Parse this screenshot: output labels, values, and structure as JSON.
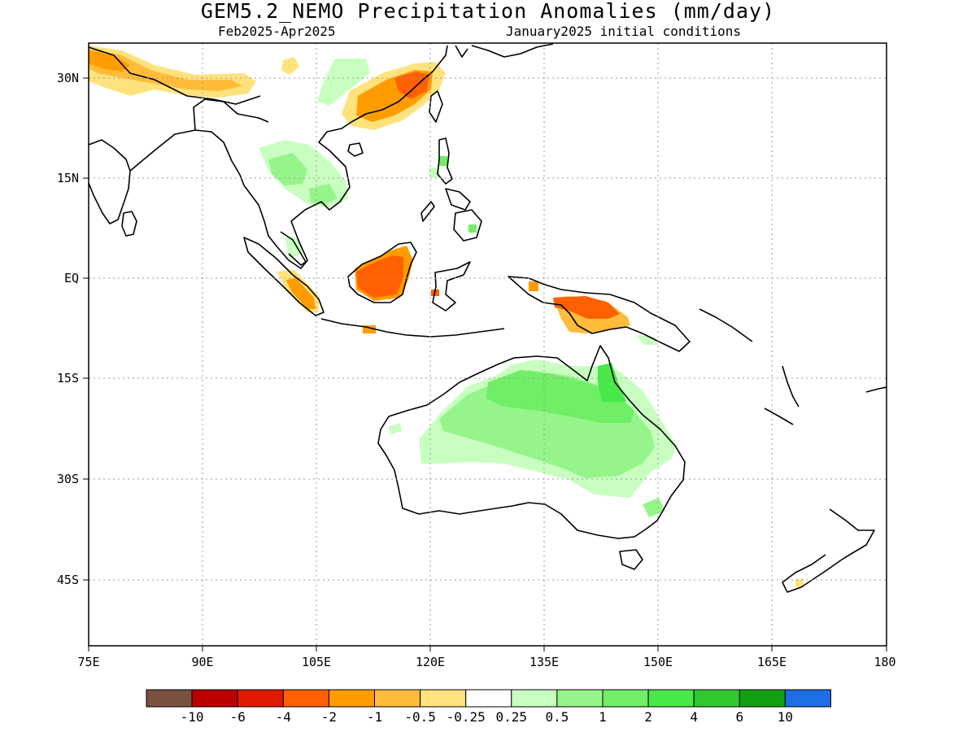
{
  "title": "GEM5.2_NEMO Precipitation Anomalies (mm/day)",
  "period": "Feb2025-Apr2025",
  "init": "January2025 initial conditions",
  "lon_ticks": [
    "75E",
    "90E",
    "105E",
    "120E",
    "135E",
    "150E",
    "165E",
    "180"
  ],
  "lat_ticks": [
    "30N",
    "15N",
    "EQ",
    "15S",
    "30S",
    "45S"
  ],
  "colorbar": {
    "colors": [
      "#7a5040",
      "#bb0000",
      "#e01a00",
      "#ff6000",
      "#ff9c00",
      "#ffbc3a",
      "#ffe27c",
      "#ffffff",
      "#c8ffc0",
      "#96f58a",
      "#70ee66",
      "#48e848",
      "#30c830",
      "#12a012",
      "#1e6ee6"
    ],
    "labels": [
      "-10",
      "-6",
      "-4",
      "-2",
      "-1",
      "-0.5",
      "-0.25",
      "0.25",
      "0.5",
      "1",
      "2",
      "4",
      "6",
      "10"
    ]
  },
  "colors": {
    "coast": "#000000",
    "grid": "#9a9a9a"
  }
}
